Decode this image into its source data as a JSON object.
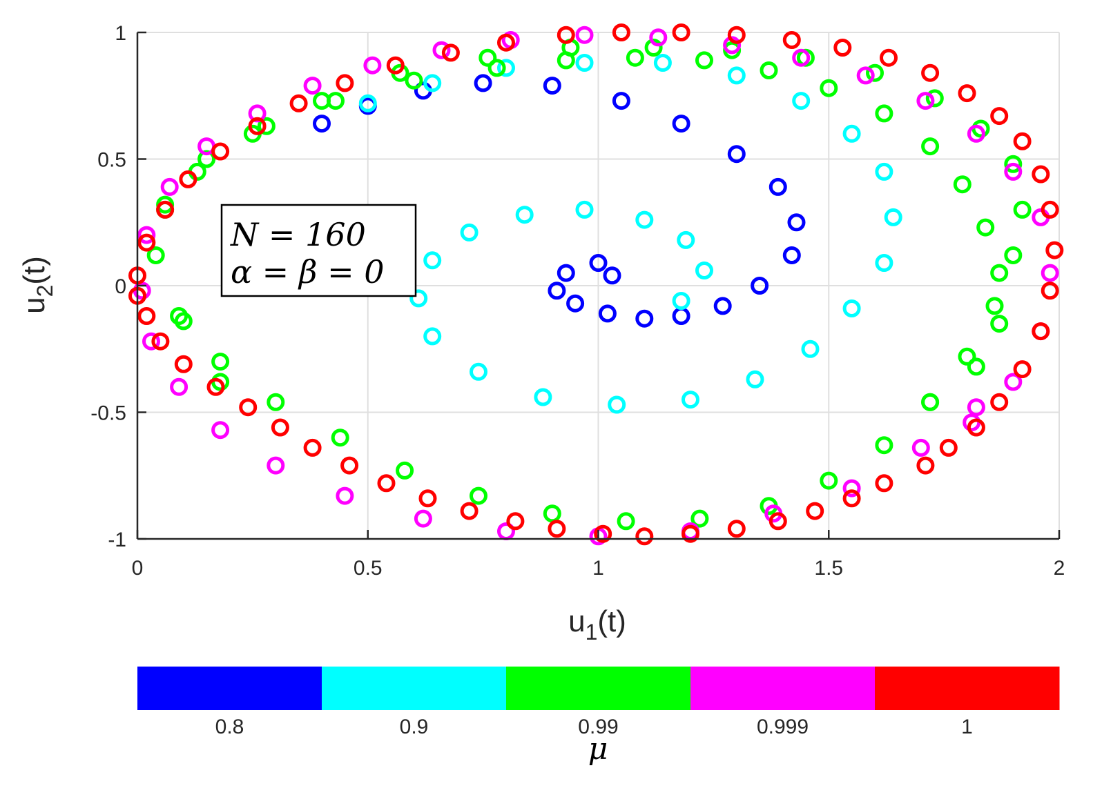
{
  "chart_data": {
    "type": "scatter",
    "marker": "open-circle",
    "xlabel": {
      "base": "u",
      "sub": "1",
      "suffix": "(t)"
    },
    "ylabel": {
      "base": "u",
      "sub": "2",
      "suffix": "(t)"
    },
    "xlim": [
      0,
      2
    ],
    "ylim": [
      -1,
      1
    ],
    "xticks": [
      "0",
      "0.5",
      "1",
      "1.5",
      "2"
    ],
    "yticks": [
      "1",
      "0.5",
      "0",
      "-0.5",
      "-1"
    ],
    "xtick_values": [
      0,
      0.5,
      1,
      1.5,
      2
    ],
    "ytick_values": [
      1,
      0.5,
      0,
      -0.5,
      -1
    ],
    "grid": true,
    "annotation": {
      "line1": "N = 160",
      "line2": "α = β = 0"
    },
    "colorbar": {
      "title": "μ",
      "placement": "bottom",
      "entries": [
        {
          "label": "0.8",
          "color": "#0000ff"
        },
        {
          "label": "0.9",
          "color": "#00ffff"
        },
        {
          "label": "0.99",
          "color": "#00ff00"
        },
        {
          "label": "0.999",
          "color": "#ff00ff"
        },
        {
          "label": "1",
          "color": "#ff0000"
        }
      ]
    },
    "series": [
      {
        "mu": "0.8",
        "color": "#0000ff",
        "x": [
          1.03,
          1.0,
          0.93,
          0.91,
          0.95,
          1.02,
          1.1,
          1.18,
          1.27,
          1.35,
          1.42,
          1.43,
          1.39,
          1.3,
          1.18,
          1.05,
          0.9,
          0.75,
          0.62,
          0.5,
          0.4
        ],
        "y": [
          0.04,
          0.09,
          0.05,
          -0.02,
          -0.07,
          -0.11,
          -0.13,
          -0.12,
          -0.08,
          0.0,
          0.12,
          0.25,
          0.39,
          0.52,
          0.64,
          0.73,
          0.79,
          0.8,
          0.77,
          0.71,
          0.64
        ]
      },
      {
        "mu": "0.9",
        "color": "#00ffff",
        "x": [
          1.18,
          1.23,
          1.19,
          1.1,
          0.97,
          0.84,
          0.72,
          0.64,
          0.61,
          0.64,
          0.74,
          0.88,
          1.04,
          1.2,
          1.34,
          1.46,
          1.55,
          1.62,
          1.64,
          1.62,
          1.55,
          1.44,
          1.3,
          1.14,
          0.97,
          0.8,
          0.64,
          0.5
        ],
        "y": [
          -0.06,
          0.06,
          0.18,
          0.26,
          0.3,
          0.28,
          0.21,
          0.1,
          -0.05,
          -0.2,
          -0.34,
          -0.44,
          -0.47,
          -0.45,
          -0.37,
          -0.25,
          -0.09,
          0.09,
          0.27,
          0.45,
          0.6,
          0.73,
          0.83,
          0.88,
          0.88,
          0.86,
          0.8,
          0.72
        ]
      },
      {
        "mu": "0.99",
        "color": "#00ff00",
        "x": [
          1.72,
          1.82,
          1.87,
          1.87,
          1.84,
          1.79,
          1.72,
          1.62,
          1.5,
          1.37,
          1.23,
          1.08,
          0.93,
          0.78,
          0.6,
          0.43,
          0.28,
          0.15,
          0.06,
          0.04,
          0.09,
          0.18,
          0.3,
          0.44,
          0.58,
          0.74,
          0.9,
          1.06,
          1.22,
          1.37,
          1.5,
          1.62,
          1.72,
          1.8,
          1.86,
          1.9,
          1.92,
          1.9,
          1.83,
          1.73,
          1.6,
          1.45,
          1.29,
          1.12,
          0.94,
          0.76,
          0.57,
          0.4,
          0.25,
          0.13,
          0.06,
          0.1,
          0.18
        ],
        "y": [
          -0.46,
          -0.32,
          -0.15,
          0.05,
          0.23,
          0.4,
          0.55,
          0.68,
          0.78,
          0.85,
          0.89,
          0.9,
          0.89,
          0.86,
          0.81,
          0.73,
          0.63,
          0.5,
          0.32,
          0.12,
          -0.12,
          -0.3,
          -0.46,
          -0.6,
          -0.73,
          -0.83,
          -0.9,
          -0.93,
          -0.92,
          -0.87,
          -0.77,
          -0.63,
          -0.46,
          -0.28,
          -0.08,
          0.12,
          0.3,
          0.48,
          0.62,
          0.74,
          0.84,
          0.9,
          0.93,
          0.94,
          0.94,
          0.9,
          0.84,
          0.73,
          0.6,
          0.45,
          0.3,
          -0.14,
          -0.38
        ]
      },
      {
        "mu": "0.999",
        "color": "#ff00ff",
        "x": [
          1.81,
          1.9,
          1.96,
          1.98,
          1.96,
          1.9,
          1.82,
          1.71,
          1.58,
          1.44,
          1.29,
          1.13,
          0.97,
          0.81,
          0.66,
          0.51,
          0.38,
          0.26,
          0.15,
          0.07,
          0.02,
          0.01,
          0.03,
          0.09,
          0.18,
          0.3,
          0.45,
          0.62,
          0.8,
          1.0,
          1.2,
          1.38,
          1.55,
          1.7,
          1.82
        ],
        "y": [
          -0.54,
          -0.38,
          -0.18,
          0.05,
          0.27,
          0.45,
          0.6,
          0.73,
          0.83,
          0.9,
          0.95,
          0.98,
          0.99,
          0.97,
          0.93,
          0.87,
          0.79,
          0.68,
          0.55,
          0.39,
          0.2,
          -0.02,
          -0.22,
          -0.4,
          -0.57,
          -0.71,
          -0.83,
          -0.92,
          -0.97,
          -0.99,
          -0.97,
          -0.9,
          -0.8,
          -0.64,
          -0.48
        ]
      },
      {
        "mu": "1",
        "color": "#ff0000",
        "x": [
          1.82,
          1.87,
          1.92,
          1.96,
          1.98,
          1.99,
          1.98,
          1.96,
          1.92,
          1.87,
          1.8,
          1.72,
          1.63,
          1.53,
          1.42,
          1.3,
          1.18,
          1.05,
          0.93,
          0.8,
          0.68,
          0.56,
          0.45,
          0.35,
          0.26,
          0.18,
          0.11,
          0.06,
          0.02,
          0.0,
          0.0,
          0.02,
          0.05,
          0.1,
          0.17,
          0.24,
          0.31,
          0.38,
          0.46,
          0.54,
          0.63,
          0.72,
          0.82,
          0.91,
          1.01,
          1.1,
          1.2,
          1.3,
          1.39,
          1.47,
          1.55,
          1.62,
          1.71,
          1.76
        ],
        "y": [
          -0.56,
          -0.46,
          -0.33,
          -0.18,
          -0.02,
          0.14,
          0.3,
          0.44,
          0.57,
          0.67,
          0.76,
          0.84,
          0.9,
          0.94,
          0.97,
          0.99,
          1.0,
          1.0,
          0.99,
          0.96,
          0.92,
          0.87,
          0.8,
          0.72,
          0.63,
          0.53,
          0.42,
          0.3,
          0.17,
          0.04,
          -0.04,
          -0.12,
          -0.22,
          -0.31,
          -0.4,
          -0.48,
          -0.56,
          -0.64,
          -0.71,
          -0.78,
          -0.84,
          -0.89,
          -0.93,
          -0.96,
          -0.98,
          -0.99,
          -0.98,
          -0.96,
          -0.93,
          -0.89,
          -0.84,
          -0.78,
          -0.71,
          -0.64
        ]
      }
    ]
  }
}
